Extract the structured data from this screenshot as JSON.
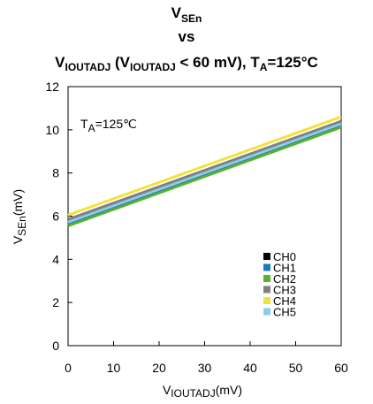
{
  "chart_data": {
    "type": "line",
    "title": {
      "line1": {
        "main": "V",
        "sub": "SEn"
      },
      "line2": "vs",
      "line3": {
        "v1": "V",
        "sub1": "IOUTADJ",
        "mid": " (V",
        "sub2": "IOUTADJ",
        "tail": " < 60 mV), T",
        "sub3": "A",
        "end": "=125°C"
      }
    },
    "annotation": {
      "main": "T",
      "sub": "A",
      "rest": "=125℃"
    },
    "xlabel": {
      "main": "V",
      "sub": "IOUTADJ",
      "unit": "(mV)"
    },
    "ylabel": {
      "main": "V",
      "sub": "SEn",
      "unit": "(mV)"
    },
    "xlim": [
      0,
      60
    ],
    "ylim": [
      0,
      12
    ],
    "xticks": [
      "0",
      "10",
      "20",
      "30",
      "40",
      "50",
      "60"
    ],
    "yticks": [
      "0",
      "2",
      "4",
      "6",
      "8",
      "10",
      "12"
    ],
    "grid": false,
    "legend_position": "lower-right",
    "series": [
      {
        "name": "CH0",
        "color": "#000000",
        "x": [
          0,
          60
        ],
        "y": [
          5.8,
          10.35
        ]
      },
      {
        "name": "CH1",
        "color": "#1a7ab8",
        "x": [
          0,
          60
        ],
        "y": [
          5.65,
          10.2
        ]
      },
      {
        "name": "CH2",
        "color": "#5ab030",
        "x": [
          0,
          60
        ],
        "y": [
          5.55,
          10.12
        ]
      },
      {
        "name": "CH3",
        "color": "#808080",
        "x": [
          0,
          60
        ],
        "y": [
          5.85,
          10.4
        ]
      },
      {
        "name": "CH4",
        "color": "#f2e33a",
        "x": [
          0,
          60
        ],
        "y": [
          6.05,
          10.6
        ]
      },
      {
        "name": "CH5",
        "color": "#8fcbe8",
        "x": [
          0,
          60
        ],
        "y": [
          5.72,
          10.28
        ]
      }
    ]
  }
}
